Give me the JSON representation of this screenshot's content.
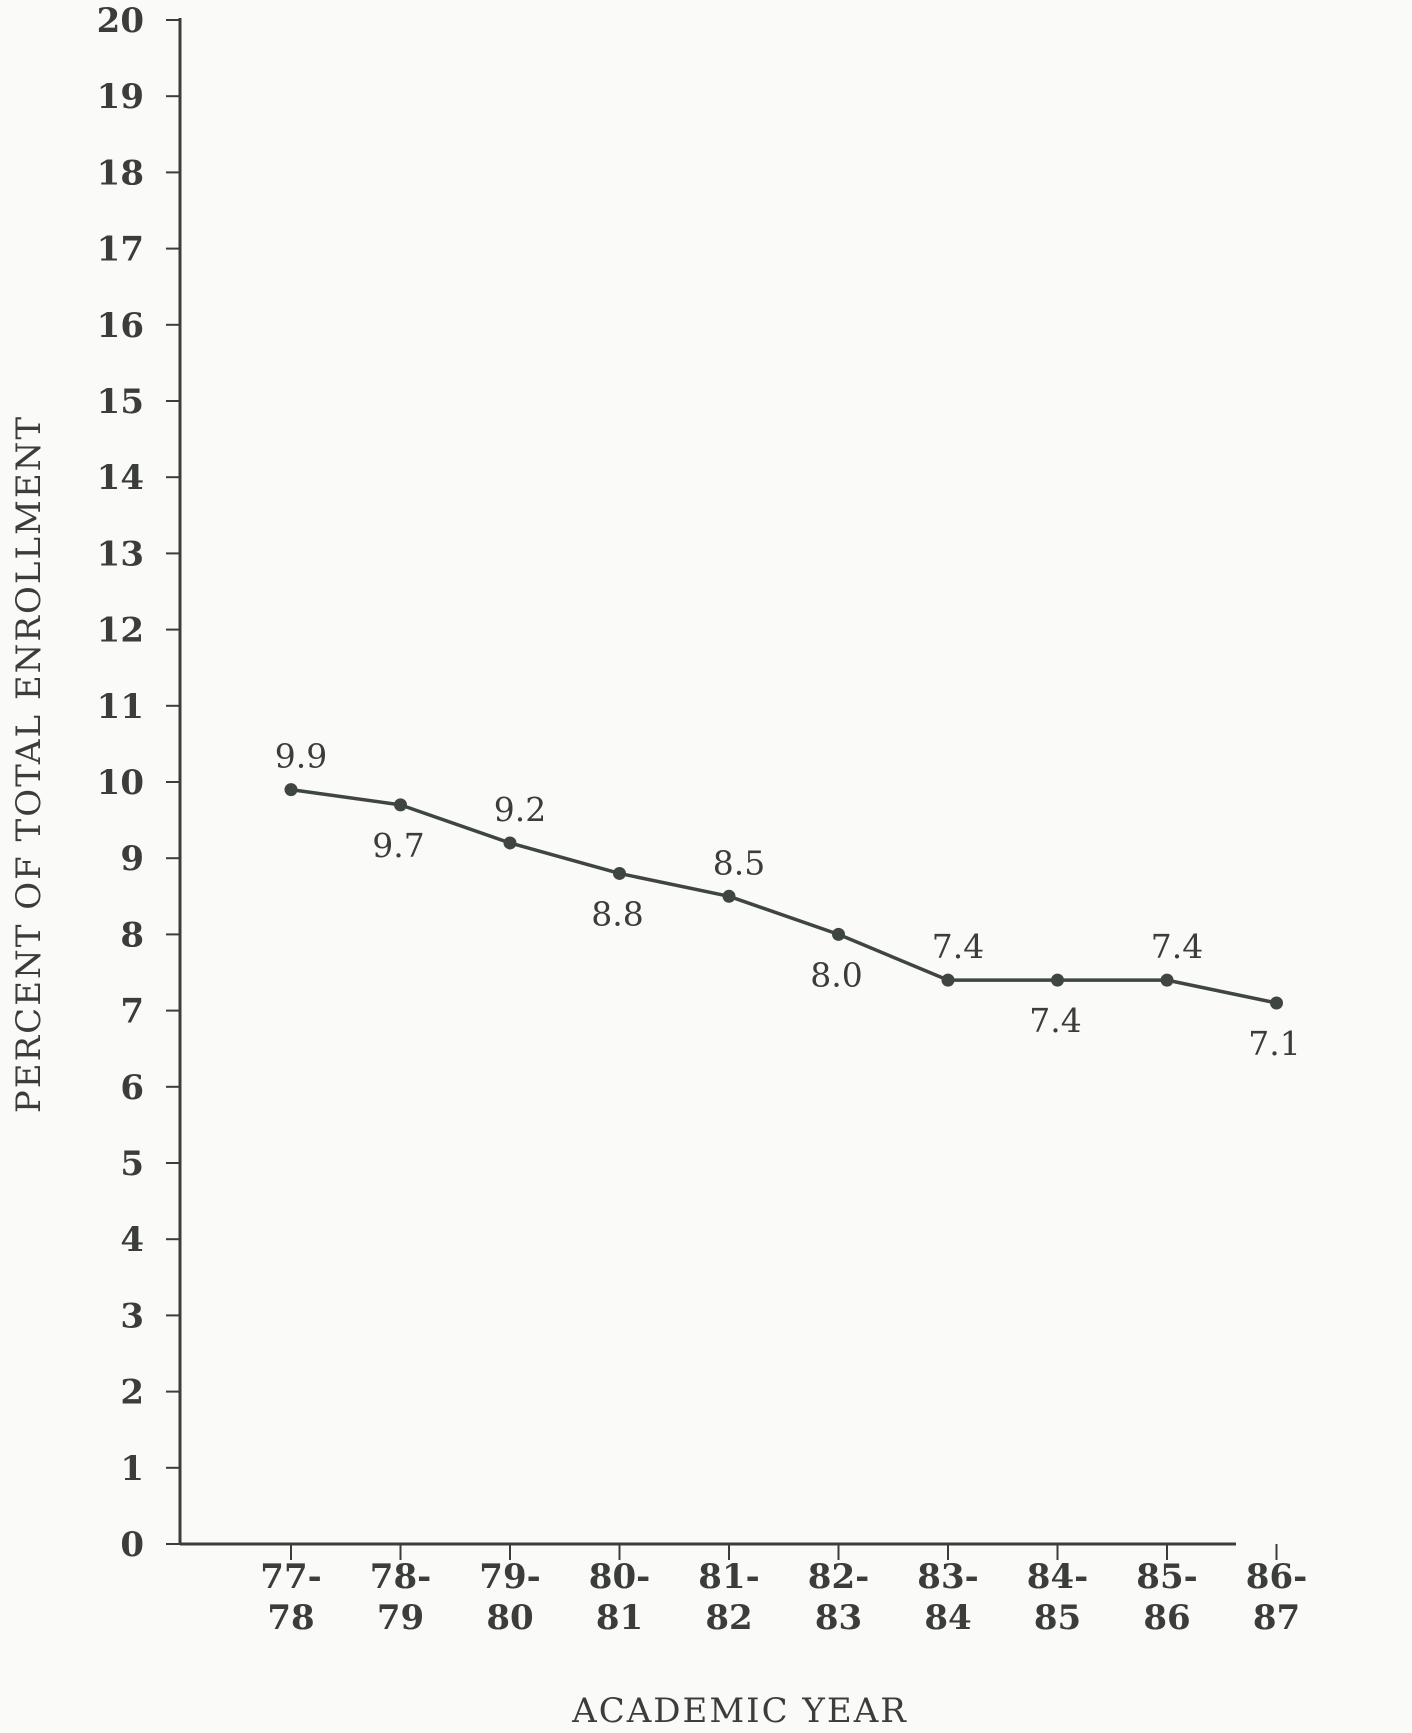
{
  "chart_data": {
    "type": "line",
    "categories": [
      [
        "77-",
        "78"
      ],
      [
        "78-",
        "79"
      ],
      [
        "79-",
        "80"
      ],
      [
        "80-",
        "81"
      ],
      [
        "81-",
        "82"
      ],
      [
        "82-",
        "83"
      ],
      [
        "83-",
        "84"
      ],
      [
        "84-",
        "85"
      ],
      [
        "85-",
        "86"
      ],
      [
        "86-",
        "87"
      ]
    ],
    "series": [
      {
        "values": [
          9.9,
          9.7,
          9.2,
          8.8,
          8.5,
          8.0,
          7.4,
          7.4,
          7.4,
          7.1
        ]
      }
    ],
    "data_labels": [
      "9.9",
      "9.7",
      "9.2",
      "8.8",
      "8.5",
      "8.0",
      "7.4",
      "7.4",
      "7.4",
      "7.1"
    ],
    "label_placement": [
      "above",
      "below",
      "above",
      "below",
      "above",
      "below",
      "above",
      "below",
      "above",
      "below"
    ],
    "xlabel": "ACADEMIC YEAR",
    "ylabel": "PERCENT OF TOTAL ENROLLMENT",
    "ylim": [
      0,
      20
    ],
    "yticks": [
      "0",
      "1",
      "2",
      "3",
      "4",
      "5",
      "6",
      "7",
      "8",
      "9",
      "10",
      "11",
      "12",
      "13",
      "14",
      "15",
      "16",
      "17",
      "18",
      "19",
      "20"
    ],
    "grid": false,
    "colors": {
      "line": "#3f453f",
      "axis": "#3a3d3a",
      "text": "#3a3d3a",
      "background": "#fafaf8"
    }
  }
}
